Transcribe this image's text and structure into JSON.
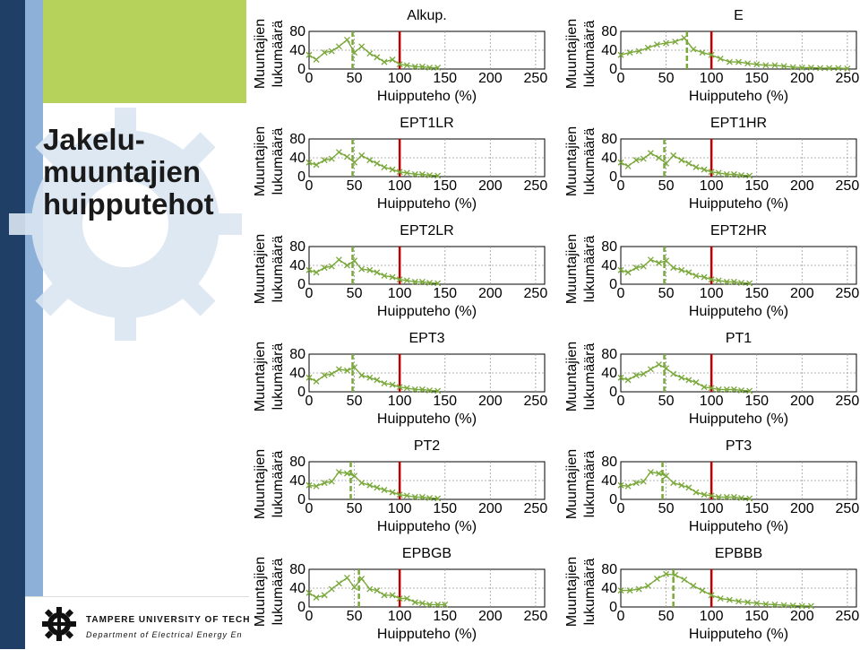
{
  "slide": {
    "title": "Jakelu-\nmuuntajien\nhuipputehot",
    "footer_university": "TAMPERE UNIVERSITY OF TECHNO",
    "footer_department": "Department of Electrical Energy En",
    "colors": {
      "dark_stripe": "#1f3f66",
      "light_stripe": "#8db0d9",
      "green_block": "#b6d25a",
      "series": "#7aa83a",
      "reference_line": "#c00000"
    }
  },
  "chart_data": [
    {
      "type": "line",
      "title": "Alkup.",
      "xlabel": "Huipputeho (%)",
      "ylabel": "Muuntajien lukumäärä",
      "xlim": [
        0,
        260
      ],
      "ylim": [
        0,
        80
      ],
      "xticks": [
        0,
        50,
        100,
        150,
        200,
        250
      ],
      "yticks": [
        0,
        40,
        80
      ],
      "grid": true,
      "mean_x": 48,
      "reference_x": 100,
      "x": [
        0,
        8,
        17,
        25,
        33,
        42,
        50,
        58,
        67,
        75,
        83,
        92,
        100,
        108,
        117,
        125,
        133,
        142
      ],
      "y": [
        30,
        20,
        35,
        38,
        48,
        62,
        35,
        48,
        33,
        25,
        15,
        20,
        10,
        8,
        5,
        5,
        3,
        3
      ]
    },
    {
      "type": "line",
      "title": "E",
      "xlabel": "Huipputeho (%)",
      "ylabel": "Muuntajien lukumäärä",
      "xlim": [
        0,
        260
      ],
      "ylim": [
        0,
        80
      ],
      "xticks": [
        0,
        50,
        100,
        150,
        200,
        250
      ],
      "yticks": [
        0,
        40,
        80
      ],
      "grid": true,
      "mean_x": 73,
      "reference_x": 100,
      "x": [
        0,
        10,
        20,
        30,
        40,
        50,
        60,
        70,
        80,
        90,
        100,
        110,
        120,
        130,
        140,
        150,
        160,
        170,
        180,
        190,
        200,
        210,
        220,
        230,
        240,
        250
      ],
      "y": [
        30,
        35,
        38,
        45,
        52,
        55,
        58,
        66,
        42,
        35,
        30,
        22,
        15,
        15,
        12,
        10,
        8,
        8,
        6,
        4,
        3,
        3,
        2,
        2,
        2,
        1
      ]
    },
    {
      "type": "line",
      "title": "EPT1LR",
      "xlabel": "Huipputeho (%)",
      "ylabel": "Muuntajien lukumäärä",
      "xlim": [
        0,
        260
      ],
      "ylim": [
        0,
        80
      ],
      "xticks": [
        0,
        50,
        100,
        150,
        200,
        250
      ],
      "yticks": [
        0,
        40,
        80
      ],
      "grid": true,
      "mean_x": 48,
      "reference_x": 100,
      "x": [
        0,
        8,
        17,
        25,
        33,
        42,
        50,
        58,
        67,
        75,
        83,
        92,
        100,
        108,
        117,
        125,
        133,
        142
      ],
      "y": [
        30,
        25,
        35,
        38,
        52,
        42,
        30,
        45,
        35,
        28,
        20,
        15,
        10,
        8,
        5,
        5,
        3,
        2
      ]
    },
    {
      "type": "line",
      "title": "EPT1HR",
      "xlabel": "Huipputeho (%)",
      "ylabel": "Muuntajien lukumäärä",
      "xlim": [
        0,
        260
      ],
      "ylim": [
        0,
        80
      ],
      "xticks": [
        0,
        50,
        100,
        150,
        200,
        250
      ],
      "yticks": [
        0,
        40,
        80
      ],
      "grid": true,
      "mean_x": 48,
      "reference_x": 100,
      "x": [
        0,
        8,
        17,
        25,
        33,
        42,
        50,
        58,
        67,
        75,
        83,
        92,
        100,
        108,
        117,
        125,
        133,
        142
      ],
      "y": [
        30,
        22,
        35,
        38,
        50,
        40,
        28,
        45,
        35,
        28,
        20,
        15,
        10,
        8,
        5,
        5,
        3,
        2
      ]
    },
    {
      "type": "line",
      "title": "EPT2LR",
      "xlabel": "Huipputeho (%)",
      "ylabel": "Muuntajien lukumäärä",
      "xlim": [
        0,
        260
      ],
      "ylim": [
        0,
        80
      ],
      "xticks": [
        0,
        50,
        100,
        150,
        200,
        250
      ],
      "yticks": [
        0,
        40,
        80
      ],
      "grid": true,
      "mean_x": 48,
      "reference_x": 100,
      "x": [
        0,
        8,
        17,
        25,
        33,
        42,
        50,
        58,
        67,
        75,
        83,
        92,
        100,
        108,
        117,
        125,
        133,
        142
      ],
      "y": [
        30,
        25,
        35,
        38,
        52,
        40,
        50,
        32,
        30,
        25,
        18,
        15,
        10,
        8,
        5,
        5,
        3,
        2
      ]
    },
    {
      "type": "line",
      "title": "EPT2HR",
      "xlabel": "Huipputeho (%)",
      "ylabel": "Muuntajien lukumäärä",
      "xlim": [
        0,
        260
      ],
      "ylim": [
        0,
        80
      ],
      "xticks": [
        0,
        50,
        100,
        150,
        200,
        250
      ],
      "yticks": [
        0,
        40,
        80
      ],
      "grid": true,
      "mean_x": 48,
      "reference_x": 100,
      "x": [
        0,
        8,
        17,
        25,
        33,
        42,
        50,
        58,
        67,
        75,
        83,
        92,
        100,
        108,
        117,
        125,
        133,
        142
      ],
      "y": [
        30,
        25,
        35,
        38,
        52,
        45,
        50,
        35,
        30,
        25,
        18,
        15,
        10,
        8,
        5,
        5,
        3,
        2
      ]
    },
    {
      "type": "line",
      "title": "EPT3",
      "xlabel": "Huipputeho (%)",
      "ylabel": "Muuntajien lukumäärä",
      "xlim": [
        0,
        260
      ],
      "ylim": [
        0,
        80
      ],
      "xticks": [
        0,
        50,
        100,
        150,
        200,
        250
      ],
      "yticks": [
        0,
        40,
        80
      ],
      "grid": true,
      "mean_x": 48,
      "reference_x": 100,
      "x": [
        0,
        8,
        17,
        25,
        33,
        42,
        50,
        58,
        67,
        75,
        83,
        92,
        100,
        108,
        117,
        125,
        133,
        142
      ],
      "y": [
        30,
        22,
        35,
        38,
        48,
        45,
        52,
        35,
        30,
        25,
        18,
        15,
        10,
        8,
        5,
        5,
        3,
        2
      ]
    },
    {
      "type": "line",
      "title": "PT1",
      "xlabel": "Huipputeho (%)",
      "ylabel": "Muuntajien lukumäärä",
      "xlim": [
        0,
        260
      ],
      "ylim": [
        0,
        80
      ],
      "xticks": [
        0,
        50,
        100,
        150,
        200,
        250
      ],
      "yticks": [
        0,
        40,
        80
      ],
      "grid": true,
      "mean_x": 48,
      "reference_x": 100,
      "x": [
        0,
        8,
        17,
        25,
        33,
        42,
        50,
        58,
        67,
        75,
        83,
        92,
        100,
        108,
        117,
        125,
        133,
        142
      ],
      "y": [
        30,
        25,
        35,
        38,
        48,
        58,
        50,
        38,
        30,
        25,
        20,
        10,
        8,
        5,
        5,
        5,
        3,
        2
      ]
    },
    {
      "type": "line",
      "title": "PT2",
      "xlabel": "Huipputeho (%)",
      "ylabel": "Muuntajien lukumäärä",
      "xlim": [
        0,
        260
      ],
      "ylim": [
        0,
        80
      ],
      "xticks": [
        0,
        50,
        100,
        150,
        200,
        250
      ],
      "yticks": [
        0,
        40,
        80
      ],
      "grid": true,
      "mean_x": 46,
      "reference_x": 100,
      "x": [
        0,
        8,
        17,
        25,
        33,
        42,
        50,
        58,
        67,
        75,
        83,
        92,
        100,
        108,
        117,
        125,
        133,
        142
      ],
      "y": [
        30,
        28,
        35,
        38,
        58,
        55,
        50,
        35,
        30,
        25,
        20,
        15,
        10,
        8,
        5,
        5,
        3,
        2
      ]
    },
    {
      "type": "line",
      "title": "PT3",
      "xlabel": "Huipputeho (%)",
      "ylabel": "Muuntajien lukumäärä",
      "xlim": [
        0,
        260
      ],
      "ylim": [
        0,
        80
      ],
      "xticks": [
        0,
        50,
        100,
        150,
        200,
        250
      ],
      "yticks": [
        0,
        40,
        80
      ],
      "grid": true,
      "mean_x": 46,
      "reference_x": 100,
      "x": [
        0,
        8,
        17,
        25,
        33,
        42,
        50,
        58,
        67,
        75,
        83,
        92,
        100,
        108,
        117,
        125,
        133,
        142
      ],
      "y": [
        30,
        28,
        35,
        38,
        58,
        55,
        50,
        35,
        30,
        25,
        15,
        10,
        8,
        5,
        5,
        5,
        3,
        2
      ]
    },
    {
      "type": "line",
      "title": "EPBGB",
      "xlabel": "Huipputeho (%)",
      "ylabel": "Muuntajien lukumäärä",
      "xlim": [
        0,
        260
      ],
      "ylim": [
        0,
        80
      ],
      "xticks": [
        0,
        50,
        100,
        150,
        200,
        250
      ],
      "yticks": [
        0,
        40,
        80
      ],
      "grid": true,
      "mean_x": 55,
      "reference_x": 100,
      "x": [
        0,
        8,
        17,
        25,
        33,
        42,
        50,
        58,
        67,
        75,
        83,
        92,
        100,
        108,
        117,
        125,
        133,
        142,
        150
      ],
      "y": [
        30,
        20,
        25,
        38,
        50,
        62,
        42,
        60,
        38,
        35,
        25,
        25,
        18,
        18,
        10,
        8,
        5,
        5,
        5
      ]
    },
    {
      "type": "line",
      "title": "EPBBB",
      "xlabel": "Huipputeho (%)",
      "ylabel": "Muuntajien lukumäärä",
      "xlim": [
        0,
        260
      ],
      "ylim": [
        0,
        80
      ],
      "xticks": [
        0,
        50,
        100,
        150,
        200,
        250
      ],
      "yticks": [
        0,
        40,
        80
      ],
      "grid": true,
      "mean_x": 58,
      "reference_x": 100,
      "x": [
        0,
        10,
        20,
        30,
        40,
        50,
        60,
        70,
        80,
        90,
        100,
        110,
        120,
        130,
        140,
        150,
        160,
        170,
        180,
        190,
        200,
        210
      ],
      "y": [
        35,
        35,
        38,
        45,
        60,
        70,
        68,
        58,
        45,
        35,
        25,
        18,
        15,
        12,
        10,
        8,
        6,
        5,
        4,
        3,
        2,
        2
      ]
    }
  ]
}
